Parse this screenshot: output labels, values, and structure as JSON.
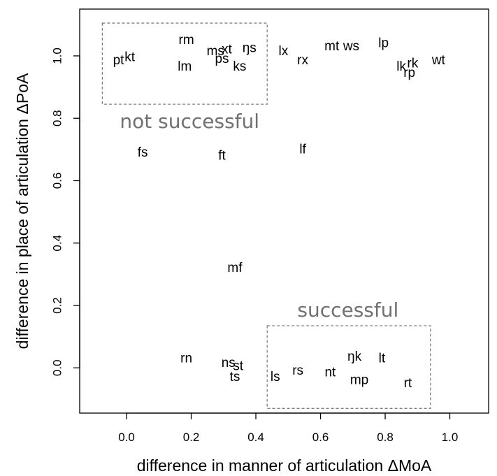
{
  "chart_data": {
    "type": "scatter",
    "xlabel": "difference in manner of articulation ΔMoA",
    "ylabel": "difference in place of articulation ΔPoA",
    "xlim": [
      -0.145,
      1.12
    ],
    "ylim": [
      -0.145,
      1.15
    ],
    "xticks": [
      0.0,
      0.2,
      0.4,
      0.6,
      0.8,
      1.0
    ],
    "xtick_labels": [
      "0.0",
      "0.2",
      "0.4",
      "0.6",
      "0.8",
      "1.0"
    ],
    "yticks": [
      0.0,
      0.2,
      0.4,
      0.6,
      0.8,
      1.0
    ],
    "ytick_labels": [
      "0.0",
      "0.2",
      "0.4",
      "0.6",
      "0.8",
      "1.0"
    ],
    "grid": false,
    "points": [
      {
        "label": "pt",
        "x": -0.025,
        "y": 0.985
      },
      {
        "label": "kt",
        "x": 0.01,
        "y": 0.995
      },
      {
        "label": "rm",
        "x": 0.185,
        "y": 1.05
      },
      {
        "label": "lm",
        "x": 0.18,
        "y": 0.965
      },
      {
        "label": "ms",
        "x": 0.275,
        "y": 1.015
      },
      {
        "label": "xt",
        "x": 0.31,
        "y": 1.02
      },
      {
        "label": "ps",
        "x": 0.295,
        "y": 0.99
      },
      {
        "label": "ŋs",
        "x": 0.38,
        "y": 1.025
      },
      {
        "label": "ks",
        "x": 0.35,
        "y": 0.965
      },
      {
        "label": "lx",
        "x": 0.485,
        "y": 1.015
      },
      {
        "label": "rx",
        "x": 0.545,
        "y": 0.985
      },
      {
        "label": "mt",
        "x": 0.635,
        "y": 1.03
      },
      {
        "label": "ws",
        "x": 0.695,
        "y": 1.03
      },
      {
        "label": "lp",
        "x": 0.795,
        "y": 1.04
      },
      {
        "label": "lk",
        "x": 0.85,
        "y": 0.965
      },
      {
        "label": "rk",
        "x": 0.885,
        "y": 0.975
      },
      {
        "label": "rp",
        "x": 0.875,
        "y": 0.945
      },
      {
        "label": "wt",
        "x": 0.965,
        "y": 0.985
      },
      {
        "label": "fs",
        "x": 0.05,
        "y": 0.69
      },
      {
        "label": "ft",
        "x": 0.295,
        "y": 0.68
      },
      {
        "label": "lf",
        "x": 0.545,
        "y": 0.7
      },
      {
        "label": "mf",
        "x": 0.335,
        "y": 0.32
      },
      {
        "label": "rn",
        "x": 0.185,
        "y": 0.03
      },
      {
        "label": "ns",
        "x": 0.315,
        "y": 0.015
      },
      {
        "label": "st",
        "x": 0.345,
        "y": 0.005
      },
      {
        "label": "ts",
        "x": 0.335,
        "y": -0.03
      },
      {
        "label": "ls",
        "x": 0.46,
        "y": -0.03
      },
      {
        "label": "rs",
        "x": 0.53,
        "y": -0.01
      },
      {
        "label": "nt",
        "x": 0.63,
        "y": -0.015
      },
      {
        "label": "ŋk",
        "x": 0.705,
        "y": 0.035
      },
      {
        "label": "mp",
        "x": 0.72,
        "y": -0.04
      },
      {
        "label": "lt",
        "x": 0.79,
        "y": 0.03
      },
      {
        "label": "rt",
        "x": 0.87,
        "y": -0.05
      }
    ],
    "annotations": [
      {
        "text": "not successful",
        "x": 0.195,
        "y": 0.79,
        "box": {
          "x0": -0.075,
          "x1": 0.435,
          "y0": 0.845,
          "y1": 1.105
        }
      },
      {
        "text": "successful",
        "x": 0.685,
        "y": 0.185,
        "box": {
          "x0": 0.435,
          "x1": 0.94,
          "y0": -0.13,
          "y1": 0.135
        }
      }
    ]
  }
}
